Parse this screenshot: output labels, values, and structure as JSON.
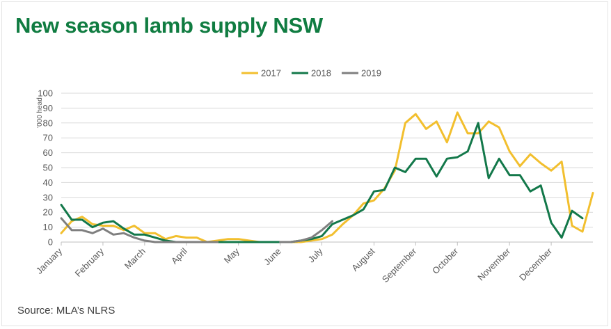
{
  "colors": {
    "title": "#107c41",
    "2017": "#f2bf2e",
    "2018": "#13784a",
    "2019": "#7f7f7f",
    "grid": "#d9d9d9"
  },
  "source": "Source: MLA’s NLRS",
  "chart_data": {
    "type": "line",
    "title": "New season lamb supply NSW",
    "ylabel": "'000 head",
    "xlabel": "",
    "ylim": [
      0,
      100
    ],
    "yticks": [
      0,
      10,
      20,
      30,
      40,
      50,
      60,
      70,
      80,
      90,
      100
    ],
    "grid": true,
    "legend_position": "top",
    "x_unit": "week",
    "x_range": [
      1,
      52
    ],
    "month_labels": [
      {
        "label": "January",
        "week": 1
      },
      {
        "label": "February",
        "week": 5
      },
      {
        "label": "March",
        "week": 9
      },
      {
        "label": "April",
        "week": 13
      },
      {
        "label": "May",
        "week": 18
      },
      {
        "label": "June",
        "week": 22
      },
      {
        "label": "July",
        "week": 26
      },
      {
        "label": "August",
        "week": 31
      },
      {
        "label": "September",
        "week": 35
      },
      {
        "label": "October",
        "week": 39
      },
      {
        "label": "November",
        "week": 44
      },
      {
        "label": "December",
        "week": 48
      }
    ],
    "series": [
      {
        "name": "2017",
        "points": [
          [
            1,
            6
          ],
          [
            2,
            14
          ],
          [
            3,
            17
          ],
          [
            4,
            12
          ],
          [
            5,
            11
          ],
          [
            6,
            11
          ],
          [
            7,
            8
          ],
          [
            8,
            11
          ],
          [
            9,
            6
          ],
          [
            10,
            6
          ],
          [
            11,
            2
          ],
          [
            12,
            4
          ],
          [
            13,
            3
          ],
          [
            14,
            3
          ],
          [
            15,
            0
          ],
          [
            16,
            1
          ],
          [
            17,
            2
          ],
          [
            18,
            2
          ],
          [
            19,
            1
          ],
          [
            20,
            0
          ],
          [
            21,
            0
          ],
          [
            22,
            0
          ],
          [
            23,
            0
          ],
          [
            24,
            0
          ],
          [
            25,
            1
          ],
          [
            26,
            2
          ],
          [
            27,
            5
          ],
          [
            28,
            12
          ],
          [
            29,
            18
          ],
          [
            30,
            26
          ],
          [
            31,
            28
          ],
          [
            32,
            36
          ],
          [
            33,
            48
          ],
          [
            34,
            80
          ],
          [
            35,
            86
          ],
          [
            36,
            76
          ],
          [
            37,
            81
          ],
          [
            38,
            67
          ],
          [
            39,
            87
          ],
          [
            40,
            73
          ],
          [
            41,
            73
          ],
          [
            42,
            81
          ],
          [
            43,
            77
          ],
          [
            44,
            61
          ],
          [
            45,
            51
          ],
          [
            46,
            59
          ],
          [
            47,
            53
          ],
          [
            48,
            48
          ],
          [
            49,
            54
          ],
          [
            50,
            11
          ],
          [
            51,
            7
          ],
          [
            52,
            33
          ]
        ]
      },
      {
        "name": "2018",
        "points": [
          [
            1,
            25
          ],
          [
            2,
            15
          ],
          [
            3,
            15
          ],
          [
            4,
            10
          ],
          [
            5,
            13
          ],
          [
            6,
            14
          ],
          [
            7,
            9
          ],
          [
            8,
            5
          ],
          [
            9,
            5
          ],
          [
            10,
            3
          ],
          [
            11,
            1
          ],
          [
            12,
            0
          ],
          [
            13,
            0
          ],
          [
            14,
            0
          ],
          [
            15,
            0
          ],
          [
            16,
            0
          ],
          [
            17,
            0
          ],
          [
            18,
            0
          ],
          [
            19,
            0
          ],
          [
            20,
            0
          ],
          [
            21,
            0
          ],
          [
            22,
            0
          ],
          [
            23,
            0
          ],
          [
            24,
            1
          ],
          [
            25,
            2
          ],
          [
            26,
            4
          ],
          [
            27,
            12
          ],
          [
            28,
            15
          ],
          [
            29,
            18
          ],
          [
            30,
            22
          ],
          [
            31,
            34
          ],
          [
            32,
            35
          ],
          [
            33,
            50
          ],
          [
            34,
            47
          ],
          [
            35,
            56
          ],
          [
            36,
            56
          ],
          [
            37,
            44
          ],
          [
            38,
            56
          ],
          [
            39,
            57
          ],
          [
            40,
            61
          ],
          [
            41,
            80
          ],
          [
            42,
            43
          ],
          [
            43,
            56
          ],
          [
            44,
            45
          ],
          [
            45,
            45
          ],
          [
            46,
            34
          ],
          [
            47,
            38
          ],
          [
            48,
            13
          ],
          [
            49,
            3
          ],
          [
            50,
            21
          ],
          [
            51,
            16
          ]
        ]
      },
      {
        "name": "2019",
        "points": [
          [
            1,
            16
          ],
          [
            2,
            8
          ],
          [
            3,
            8
          ],
          [
            4,
            6
          ],
          [
            5,
            9
          ],
          [
            6,
            5
          ],
          [
            7,
            6
          ],
          [
            8,
            3
          ],
          [
            9,
            1
          ],
          [
            10,
            0
          ],
          [
            11,
            0
          ],
          [
            12,
            0
          ],
          [
            13,
            0
          ],
          [
            14,
            0
          ],
          [
            15,
            0
          ],
          [
            16,
            0
          ],
          [
            22,
            0
          ],
          [
            23,
            0
          ],
          [
            24,
            1
          ],
          [
            25,
            3
          ],
          [
            26,
            8
          ],
          [
            27,
            14
          ]
        ]
      }
    ]
  }
}
